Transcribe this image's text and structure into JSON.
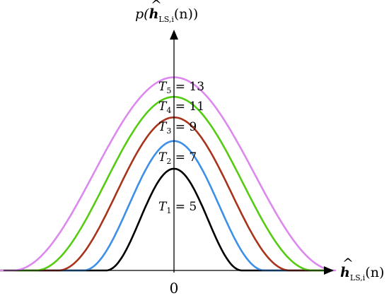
{
  "chart_data": {
    "type": "line",
    "grid": false,
    "legend": "none",
    "y_axis_title": {
      "prefix": "p(",
      "symbol": "h",
      "hat": "^",
      "subscript": "LS,i",
      "arg": "(n))"
    },
    "x_axis_title": {
      "symbol": "h",
      "hat": "^",
      "subscript": "LS,i",
      "arg": "(n)"
    },
    "x_tick_labels": [
      "0"
    ],
    "xlim": [
      -6.9,
      6.3
    ],
    "ylim": [
      0,
      1.0
    ],
    "series": [
      {
        "name": "T1 = 5",
        "label": {
          "sym": "T",
          "sub": "1",
          "eq": " = 5"
        },
        "color": "#000000",
        "half_width": 2.7,
        "peak": 0.495
      },
      {
        "name": "T2 = 7",
        "label": {
          "sym": "T",
          "sub": "2",
          "eq": " = 7"
        },
        "color": "#3d8fe8",
        "half_width": 3.6,
        "peak": 0.63
      },
      {
        "name": "T3 = 9",
        "label": {
          "sym": "T",
          "sub": "3",
          "eq": " = 9"
        },
        "color": "#a8341c",
        "half_width": 4.6,
        "peak": 0.745
      },
      {
        "name": "T4 = 11",
        "label": {
          "sym": "T",
          "sub": "4",
          "eq": " = 11"
        },
        "color": "#55cc11",
        "half_width": 5.5,
        "peak": 0.845
      },
      {
        "name": "T5 = 13",
        "label": {
          "sym": "T",
          "sub": "5",
          "eq": " = 13"
        },
        "color": "#dd88ee",
        "half_width": 6.4,
        "peak": 0.94
      }
    ]
  }
}
